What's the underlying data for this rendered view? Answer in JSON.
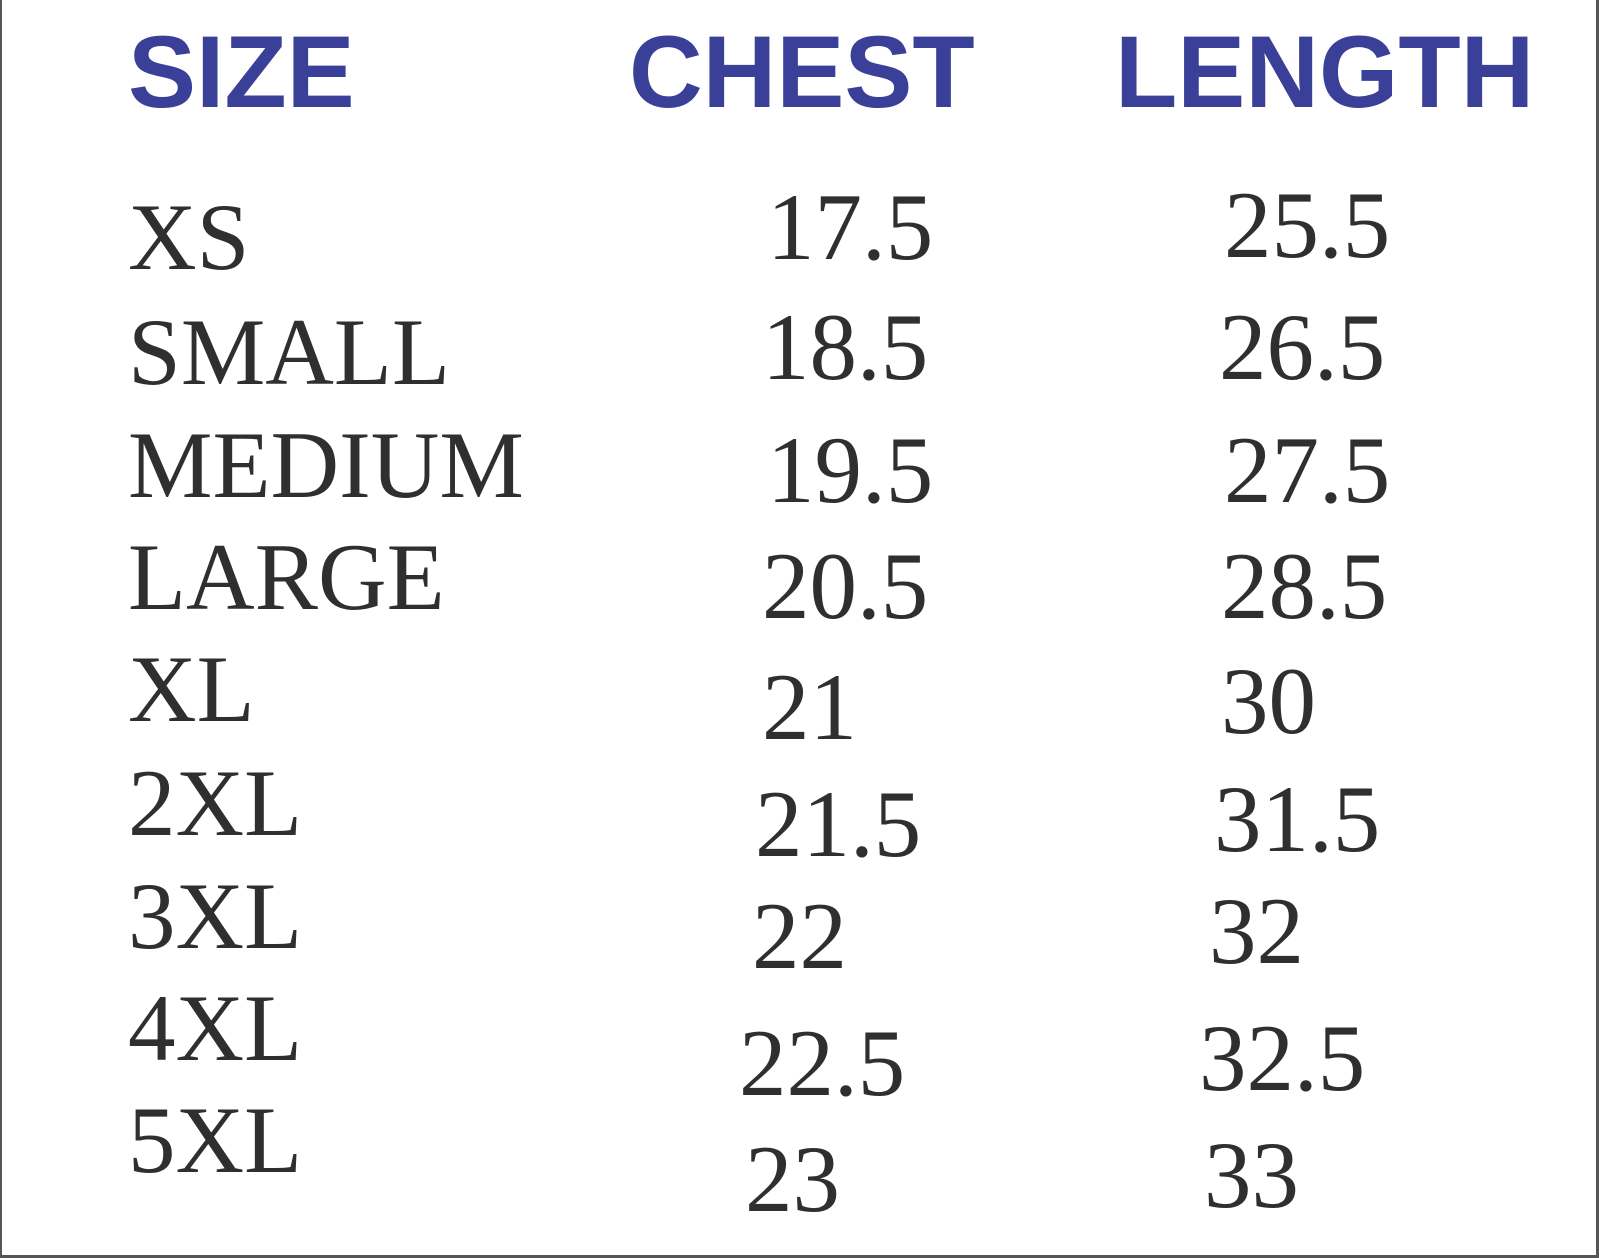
{
  "table": {
    "headers": {
      "size": "SIZE",
      "chest": "CHEST",
      "length": "LENGTH"
    },
    "header_color": "#3a3f98",
    "rows": [
      {
        "size": "XS",
        "chest": "17.5",
        "length": "25.5"
      },
      {
        "size": "SMALL",
        "chest": "18.5",
        "length": "26.5"
      },
      {
        "size": "MEDIUM",
        "chest": "19.5",
        "length": "27.5"
      },
      {
        "size": "LARGE",
        "chest": "20.5",
        "length": "28.5"
      },
      {
        "size": "XL",
        "chest": "21",
        "length": "30"
      },
      {
        "size": "2XL",
        "chest": "21.5",
        "length": "31.5"
      },
      {
        "size": "3XL",
        "chest": "22",
        "length": "32"
      },
      {
        "size": "4XL",
        "chest": "22.5",
        "length": "32.5"
      },
      {
        "size": "5XL",
        "chest": "23",
        "length": "33"
      }
    ]
  }
}
